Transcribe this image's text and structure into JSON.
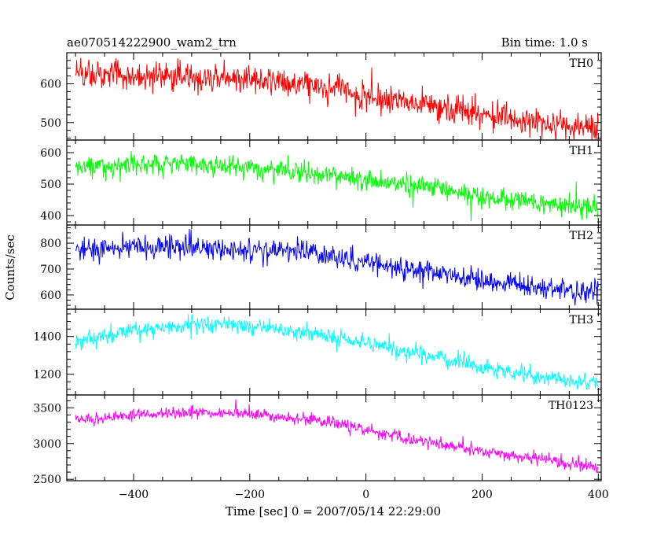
{
  "header": {
    "title": "ae070514222900_wam2_trn",
    "bin_time": "Bin time: 1.0 s"
  },
  "chart_data": {
    "type": "line",
    "xlabel": "Time [sec] 0 = 2007/05/14 22:29:00",
    "ylabel": "Counts/sec",
    "xlim": [
      -515,
      405
    ],
    "x_ticks": [
      -400,
      -200,
      0,
      200,
      400
    ],
    "x_start": -500,
    "x_end": 400,
    "x_step": 1,
    "series": [
      {
        "name": "TH0",
        "color": "#ff0000",
        "ylim": [
          455,
          680
        ],
        "y_ticks": [
          500,
          600
        ],
        "trend_points": [
          [
            -500,
            625
          ],
          [
            -200,
            612
          ],
          [
            -100,
            600
          ],
          [
            0,
            570
          ],
          [
            100,
            548
          ],
          [
            200,
            520
          ],
          [
            300,
            500
          ],
          [
            400,
            483
          ]
        ],
        "noise": 34
      },
      {
        "name": "TH1",
        "color": "#00ff00",
        "ylim": [
          370,
          640
        ],
        "y_ticks": [
          400,
          500,
          600
        ],
        "trend_points": [
          [
            -500,
            550
          ],
          [
            -400,
            565
          ],
          [
            -300,
            565
          ],
          [
            -200,
            550
          ],
          [
            -100,
            535
          ],
          [
            0,
            515
          ],
          [
            100,
            490
          ],
          [
            200,
            460
          ],
          [
            300,
            440
          ],
          [
            400,
            425
          ]
        ],
        "noise": 30
      },
      {
        "name": "TH2",
        "color": "#0000ff",
        "ylim": [
          545,
          870
        ],
        "y_ticks": [
          600,
          700,
          800
        ],
        "trend_points": [
          [
            -500,
            775
          ],
          [
            -400,
            785
          ],
          [
            -300,
            785
          ],
          [
            -200,
            775
          ],
          [
            -100,
            765
          ],
          [
            0,
            730
          ],
          [
            100,
            690
          ],
          [
            200,
            655
          ],
          [
            300,
            630
          ],
          [
            400,
            610
          ]
        ],
        "noise": 38
      },
      {
        "name": "TH3",
        "color": "#00ffff",
        "ylim": [
          1090,
          1545
        ],
        "y_ticks": [
          1200,
          1400
        ],
        "trend_points": [
          [
            -500,
            1370
          ],
          [
            -400,
            1435
          ],
          [
            -300,
            1460
          ],
          [
            -200,
            1455
          ],
          [
            -100,
            1420
          ],
          [
            0,
            1370
          ],
          [
            100,
            1300
          ],
          [
            200,
            1240
          ],
          [
            300,
            1185
          ],
          [
            400,
            1150
          ]
        ],
        "noise": 40
      },
      {
        "name": "TH0123",
        "color": "#ff00ff",
        "ylim": [
          2480,
          3680
        ],
        "y_ticks": [
          2500,
          3000,
          3500
        ],
        "trend_points": [
          [
            -500,
            3320
          ],
          [
            -400,
            3410
          ],
          [
            -300,
            3430
          ],
          [
            -200,
            3410
          ],
          [
            -100,
            3350
          ],
          [
            0,
            3200
          ],
          [
            100,
            3030
          ],
          [
            200,
            2890
          ],
          [
            300,
            2780
          ],
          [
            400,
            2670
          ]
        ],
        "noise": 75
      }
    ]
  }
}
